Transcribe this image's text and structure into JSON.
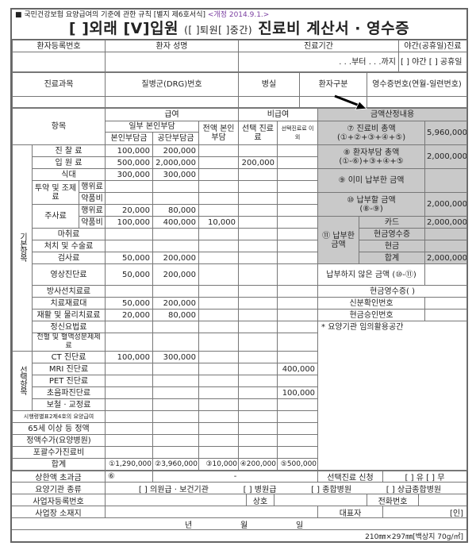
{
  "header": {
    "regulation": "■ 국민건강보험 요양급여의 기준에 관한 규칙 [별지 제6호서식]",
    "revision": "<개정 2014.9.1.>",
    "title_outpatient": "[ ]외래",
    "title_inpatient": "[V]입원",
    "title_discharge": "([  ]퇴원[  ]중간)",
    "title_main": "진료비 계산서 · 영수증"
  },
  "patient_info": {
    "reg_no_label": "환자등록번호",
    "name_label": "환자 성명",
    "period_label": "진료기간",
    "night_label": "야간(공휴일)진료",
    "period_value": ". . .부터    . . .까지",
    "night_value": "[ ] 야간  [ ] 공휴일",
    "dept_label": "진료과목",
    "drg_label": "질병군(DRG)번호",
    "room_label": "병실",
    "patient_type_label": "환자구분",
    "receipt_no_label": "영수증번호(연월-일련번호)"
  },
  "table_header": {
    "item": "항목",
    "covered": "급여",
    "non_covered": "비급여",
    "partial_copay": "일부 본인부담",
    "patient_share": "본인부담금",
    "insurer_share": "공단부담금",
    "full_copay": "전액 본인부담",
    "selective": "선택 진료료",
    "other_than_selective": "선택진료료 이외"
  },
  "groups": {
    "basic": "기본항목",
    "optional": "선택항목"
  },
  "items": [
    {
      "label": "진 찰 료",
      "v": [
        "100,000",
        "200,000",
        "",
        "",
        ""
      ]
    },
    {
      "label": "입 원 료",
      "v": [
        "500,000",
        "2,000,000",
        "",
        "200,000",
        ""
      ]
    },
    {
      "label": "식대",
      "v": [
        "300,000",
        "300,000",
        "",
        "",
        ""
      ]
    },
    {
      "group": "투약 및 조제료",
      "label": "행위료",
      "v": [
        "",
        "",
        "",
        "",
        ""
      ]
    },
    {
      "label": "약품비",
      "v": [
        "",
        "",
        "",
        "",
        ""
      ]
    },
    {
      "group": "주사료",
      "label": "행위료",
      "v": [
        "20,000",
        "80,000",
        "",
        "",
        ""
      ]
    },
    {
      "label": "약품비",
      "v": [
        "100,000",
        "400,000",
        "10,000",
        "",
        ""
      ]
    },
    {
      "label": "마취료",
      "v": [
        "",
        "",
        "",
        "",
        ""
      ]
    },
    {
      "label": "처치 및 수술료",
      "v": [
        "",
        "",
        "",
        "",
        ""
      ]
    },
    {
      "label": "검사료",
      "v": [
        "50,000",
        "200,000",
        "",
        "",
        ""
      ]
    },
    {
      "label": "영상진단료",
      "v": [
        "50,000",
        "200,000",
        "",
        "",
        ""
      ]
    },
    {
      "label": "방사선치료료",
      "v": [
        "",
        "",
        "",
        "",
        ""
      ]
    },
    {
      "label": "치료재료대",
      "v": [
        "50,000",
        "200,000",
        "",
        "",
        ""
      ]
    },
    {
      "label": "재활 및 물리치료료",
      "v": [
        "20,000",
        "80,000",
        "",
        "",
        ""
      ]
    },
    {
      "label": "정신요법료",
      "v": [
        "",
        "",
        "",
        "",
        ""
      ]
    },
    {
      "label": "전혈 및 혈액성분제제료",
      "v": [
        "",
        "",
        "",
        "",
        ""
      ]
    },
    {
      "label": "CT 진단료",
      "v": [
        "100,000",
        "300,000",
        "",
        "",
        ""
      ]
    },
    {
      "label": "MRI 진단료",
      "v": [
        "",
        "",
        "",
        "",
        "400,000"
      ]
    },
    {
      "label": "PET 진단료",
      "v": [
        "",
        "",
        "",
        "",
        ""
      ]
    },
    {
      "label": "초음파진단료",
      "v": [
        "",
        "",
        "",
        "",
        "100,000"
      ]
    },
    {
      "label": "보철 · 교정료",
      "v": [
        "",
        "",
        "",
        "",
        ""
      ]
    },
    {
      "label": "시행령별표2제4호의 요양급여",
      "v": [
        "",
        "",
        "",
        "",
        ""
      ]
    },
    {
      "label": "65세 이상 등 정액",
      "v": [
        "",
        "",
        "",
        "",
        ""
      ]
    },
    {
      "label": "정액수가(요양병원)",
      "v": [
        "",
        "",
        "",
        "",
        ""
      ]
    },
    {
      "label": "포괄수가진료비",
      "v": [
        "",
        "",
        "",
        "",
        ""
      ]
    },
    {
      "label": "합계",
      "v": [
        "①1,290,000",
        "②3,960,000",
        "③10,000",
        "④200,000",
        "⑤500,000"
      ]
    }
  ],
  "calc": {
    "title": "금액산정내용",
    "total_label": "⑦ 진료비 총액",
    "total_formula": "(①+②+③+④+⑤)",
    "total_value": "5,960,000",
    "patient_total_label": "⑧ 환자부담 총액",
    "patient_total_formula": "(①-⑥)+③+④+⑤",
    "patient_total_value": "2,000,000",
    "already_paid_label": "⑨ 이미 납부한 금액",
    "already_paid_value": "",
    "to_pay_label": "⑩ 납부할 금액",
    "to_pay_formula": "(⑧-⑨)",
    "to_pay_value": "2,000,000",
    "paid_label": "⑪ 납부한 금액",
    "card_label": "카드",
    "card_value": "2,000,000",
    "cash_receipt_label": "현금영수증",
    "cash_receipt_value": "",
    "cash_label": "현금",
    "cash_value": "",
    "paid_total_label": "합계",
    "paid_total_value": "2,000,000",
    "unpaid_label": "납부하지 않은 금액 (⑩-⑪)",
    "cash_receipt_section": "현금영수증(        )",
    "id_no_label": "신분확인번호",
    "approval_no_label": "현금승인번호",
    "free_space": "* 요양기관 임의활용공간"
  },
  "footer": {
    "ceiling_label": "상한액 초과금",
    "ceiling_mark": "⑥",
    "ceiling_value": "-",
    "selective_apply_label": "선택진료 신청",
    "selective_apply_value": "[ ] 유     [ ] 무",
    "institution_type_label": "요양기관 종류",
    "institution_types": [
      "[ ] 의원급 · 보건기관",
      "[ ] 병원급",
      "[ ] 종합병원",
      "[ ] 상급종합병원"
    ],
    "biz_no_label": "사업자등록번호",
    "company_label": "상호",
    "phone_label": "전화번호",
    "address_label": "사업장 소재지",
    "rep_label": "대표자",
    "seal": "[인]",
    "date_year": "년",
    "date_month": "월",
    "date_day": "일",
    "paper": "210㎜×297㎜[백상지 70g/㎡]"
  }
}
